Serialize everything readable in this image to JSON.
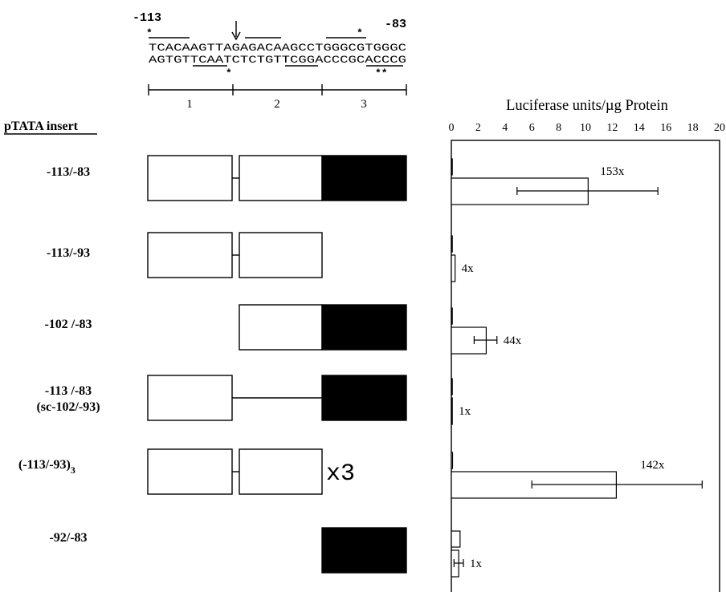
{
  "sequence": {
    "start_label": "-113",
    "end_label": "-83",
    "top_strand": "TCACAAGTTAGAGACAAGCCTGGGCGTGGGC",
    "bottom_strand": "AGTGTTCAATCTCTGTTCGGACCCGCACCCG",
    "star": "*",
    "double_star": "**"
  },
  "segments": [
    "1",
    "2",
    "3"
  ],
  "insert_header": "pTATA insert",
  "rows": [
    {
      "label": "-113/-83",
      "blocks": [
        "1",
        "2",
        "3"
      ],
      "link": "short",
      "extra": ""
    },
    {
      "label": "-113/-93",
      "blocks": [
        "1",
        "2"
      ],
      "link": "short",
      "extra": ""
    },
    {
      "label": "-102 /-83",
      "blocks": [
        "2",
        "3"
      ],
      "link": "none",
      "extra": ""
    },
    {
      "label": "-113 /-83",
      "label2": "(sc-102/-93)",
      "blocks": [
        "1",
        "3"
      ],
      "link": "long",
      "extra": ""
    },
    {
      "label": "(-113/-93)",
      "label_sub": "3",
      "blocks": [
        "1",
        "2"
      ],
      "link": "short",
      "extra": "x3"
    },
    {
      "label": "-92/-83",
      "blocks": [
        "3"
      ],
      "link": "none",
      "extra": ""
    }
  ],
  "chart_data": {
    "type": "bar",
    "orientation": "horizontal",
    "title": "Luciferase units/µg Protein",
    "xlim": [
      0,
      20
    ],
    "ticks": [
      0,
      2,
      4,
      6,
      8,
      10,
      12,
      14,
      16,
      18,
      20
    ],
    "groups": [
      {
        "category": "-113/-83",
        "control": 0.07,
        "value": 10.2,
        "error_low": 4.9,
        "error_high": 15.4,
        "label": "153x"
      },
      {
        "category": "-113/-93",
        "control": 0.07,
        "value": 0.28,
        "error_low": null,
        "error_high": null,
        "label": "4x"
      },
      {
        "category": "-102 /-83",
        "control": 0.06,
        "value": 2.6,
        "error_low": 1.7,
        "error_high": 3.4,
        "label": "44x"
      },
      {
        "category": "-113 /-83 (sc-102/-93)",
        "control": 0.05,
        "value": 0.07,
        "error_low": null,
        "error_high": null,
        "label": "1x"
      },
      {
        "category": "(-113/-93)3",
        "control": 0.09,
        "value": 12.3,
        "error_low": 6.0,
        "error_high": 18.7,
        "label": "142x"
      },
      {
        "category": "-92/-83",
        "control": 0.65,
        "value": 0.55,
        "error_low": 0.2,
        "error_high": 0.9,
        "label": "1x"
      }
    ]
  }
}
